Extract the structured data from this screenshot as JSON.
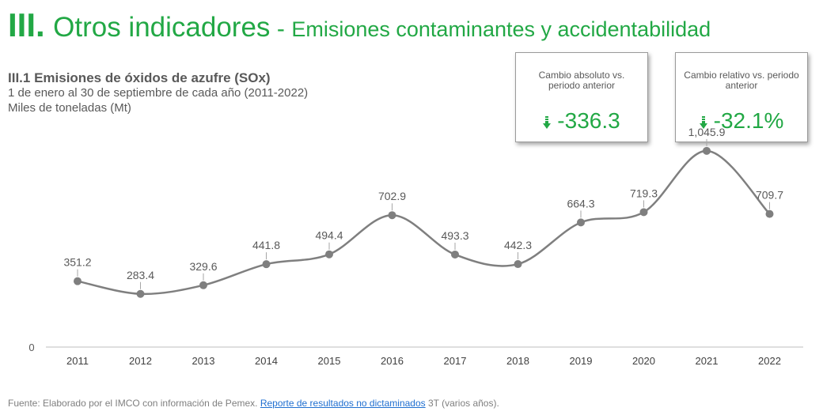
{
  "header": {
    "roman": "III.",
    "title": "Otros indicadores",
    "separator": "-",
    "subtitle": "Emisiones contaminantes y accidentabilidad"
  },
  "chart_title": {
    "title": "III.1 Emisiones de óxidos de azufre (SOx)",
    "period": "1 de enero al 30 de septiembre de cada año (2011-2022)",
    "units": "Miles de toneladas (Mt)"
  },
  "kpis": [
    {
      "label": "Cambio absoluto vs. periodo anterior",
      "value": "-336.3",
      "icon": "arrow-down-icon"
    },
    {
      "label": "Cambio relativo vs. periodo anterior",
      "value": "-32.1%",
      "icon": "arrow-down-icon"
    }
  ],
  "chart_data": {
    "type": "line",
    "categories": [
      "2011",
      "2012",
      "2013",
      "2014",
      "2015",
      "2016",
      "2017",
      "2018",
      "2019",
      "2020",
      "2021",
      "2022"
    ],
    "values": [
      351.2,
      283.4,
      329.6,
      441.8,
      494.4,
      702.9,
      493.3,
      442.3,
      664.3,
      719.3,
      1045.9,
      709.7
    ],
    "labels": [
      "351.2",
      "283.4",
      "329.6",
      "441.8",
      "494.4",
      "702.9",
      "493.3",
      "442.3",
      "664.3",
      "719.3",
      "1,045.9",
      "709.7"
    ],
    "y_tick_label": "0",
    "ylim": [
      0,
      1100
    ],
    "series_color": "#7f7f7f",
    "grid": false
  },
  "source": {
    "prefix": "Fuente: Elaborado por el IMCO con información de Pemex.",
    "link": "Reporte de resultados no dictaminados",
    "suffix": "3T (varios años)."
  },
  "colors": {
    "accent": "#22a845",
    "text": "#595959",
    "line": "#7f7f7f",
    "link": "#1f6fd0"
  }
}
